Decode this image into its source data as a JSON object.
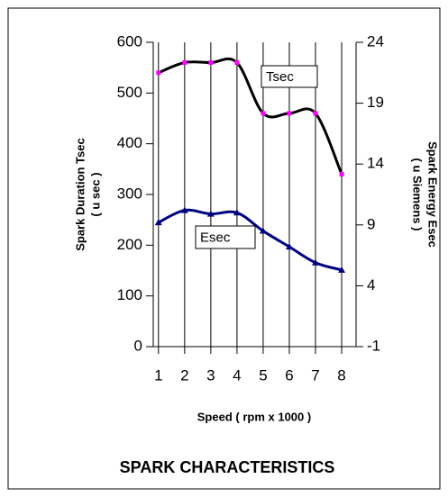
{
  "chart_data": {
    "type": "line",
    "title": "SPARK CHARACTERISTICS",
    "xlabel": "Speed ( rpm x 1000 )",
    "ylabel": [
      "Spark Duration Tsec",
      "( u sec )"
    ],
    "y2label": [
      "Spark Energy Esec",
      "( u Siemens )"
    ],
    "x": [
      1,
      2,
      3,
      4,
      5,
      6,
      7,
      8
    ],
    "xlim": [
      0.8,
      8.55
    ],
    "xticks": [
      1,
      2,
      3,
      4,
      5,
      6,
      7,
      8
    ],
    "ylim": [
      0,
      600
    ],
    "yticks": [
      0,
      100,
      200,
      300,
      400,
      500,
      600
    ],
    "y2lim": [
      -1,
      24
    ],
    "y2ticks": [
      -1,
      4,
      9,
      14,
      19,
      24
    ],
    "grid": true,
    "series": [
      {
        "name": "Tsec",
        "color": "#000000",
        "marker_color": "#ff00ff",
        "values": [
          540,
          560,
          560,
          560,
          460,
          460,
          460,
          340
        ]
      },
      {
        "name": "Esec",
        "color": "#000080",
        "marker_color": "#000080",
        "axis": "y2",
        "values": [
          9.2,
          10.2,
          9.9,
          10,
          8.5,
          7.2,
          5.9,
          5.3
        ]
      }
    ]
  }
}
